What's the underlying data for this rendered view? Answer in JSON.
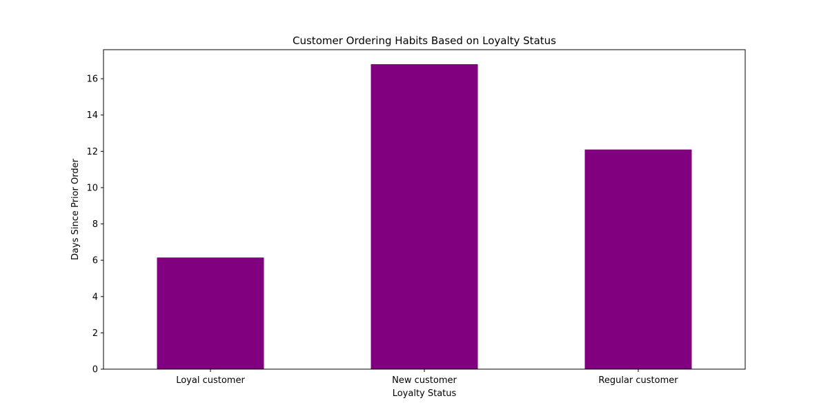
{
  "chart_data": {
    "type": "bar",
    "title": "Customer Ordering Habits Based on Loyalty Status",
    "xlabel": "Loyalty Status",
    "ylabel": "Days Since Prior Order",
    "categories": [
      "Loyal customer",
      "New customer",
      "Regular customer"
    ],
    "values": [
      6.15,
      16.8,
      12.1
    ],
    "ylim": [
      0,
      17.6
    ],
    "yticks": [
      0,
      2,
      4,
      6,
      8,
      10,
      12,
      14,
      16
    ],
    "bar_color": "#800080",
    "grid": false,
    "legend": "none"
  }
}
